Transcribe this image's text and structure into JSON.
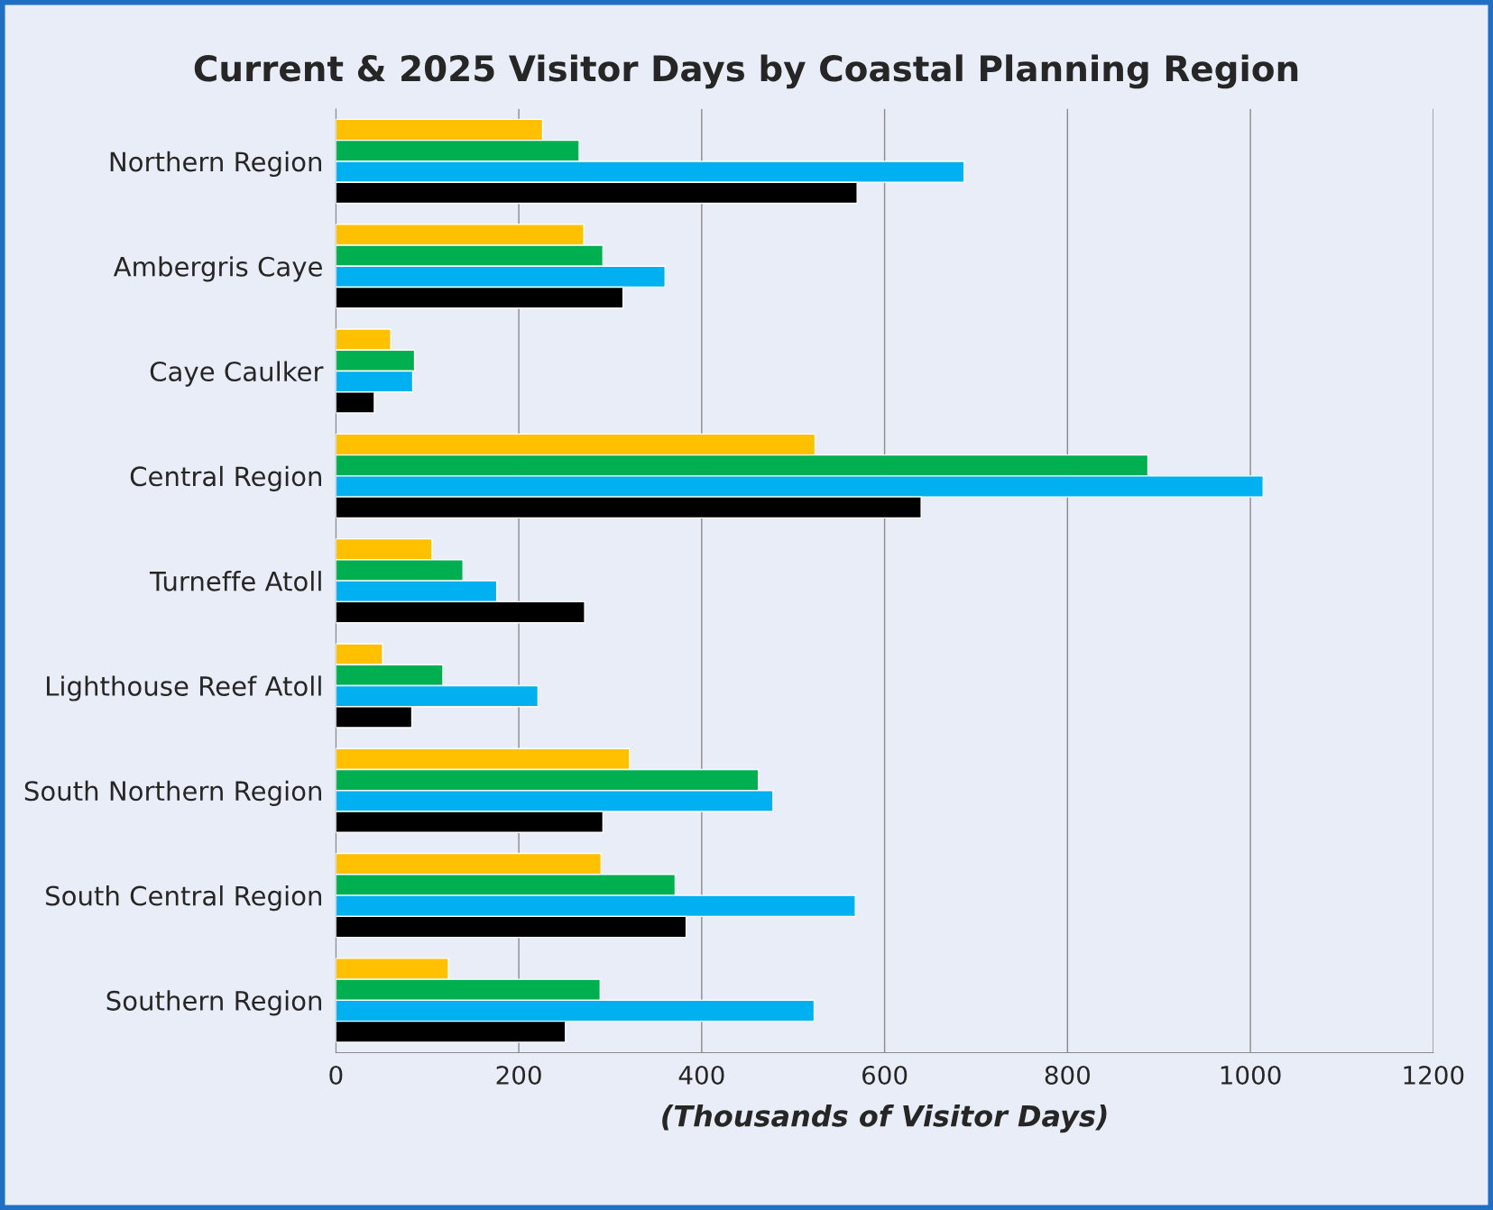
{
  "chart_data": {
    "type": "bar",
    "orientation": "horizontal",
    "title": "Current & 2025 Visitor Days by Coastal Planning Region",
    "xlabel": "(Thousands of Visitor Days)",
    "categories": [
      "Northern Region",
      "Ambergris Caye",
      "Caye Caulker",
      "Central Region",
      "Turneffe Atoll",
      "Lighthouse Reef Atoll",
      "South Northern Region",
      "South Central Region",
      "Southern Region"
    ],
    "series": [
      {
        "color": "#ffc000",
        "values": [
          226,
          271,
          60,
          524,
          105,
          51,
          321,
          290,
          123
        ]
      },
      {
        "color": "#00b050",
        "values": [
          266,
          292,
          86,
          888,
          139,
          117,
          462,
          371,
          289
        ]
      },
      {
        "color": "#00b0f0",
        "values": [
          687,
          360,
          84,
          1014,
          176,
          221,
          478,
          568,
          523
        ]
      },
      {
        "color": "#000000",
        "values": [
          570,
          314,
          42,
          640,
          272,
          83,
          292,
          383,
          251
        ]
      }
    ],
    "xlim": [
      0,
      1200
    ],
    "xticks": [
      0,
      200,
      400,
      600,
      800,
      1000,
      1200
    ],
    "grid": "x"
  }
}
